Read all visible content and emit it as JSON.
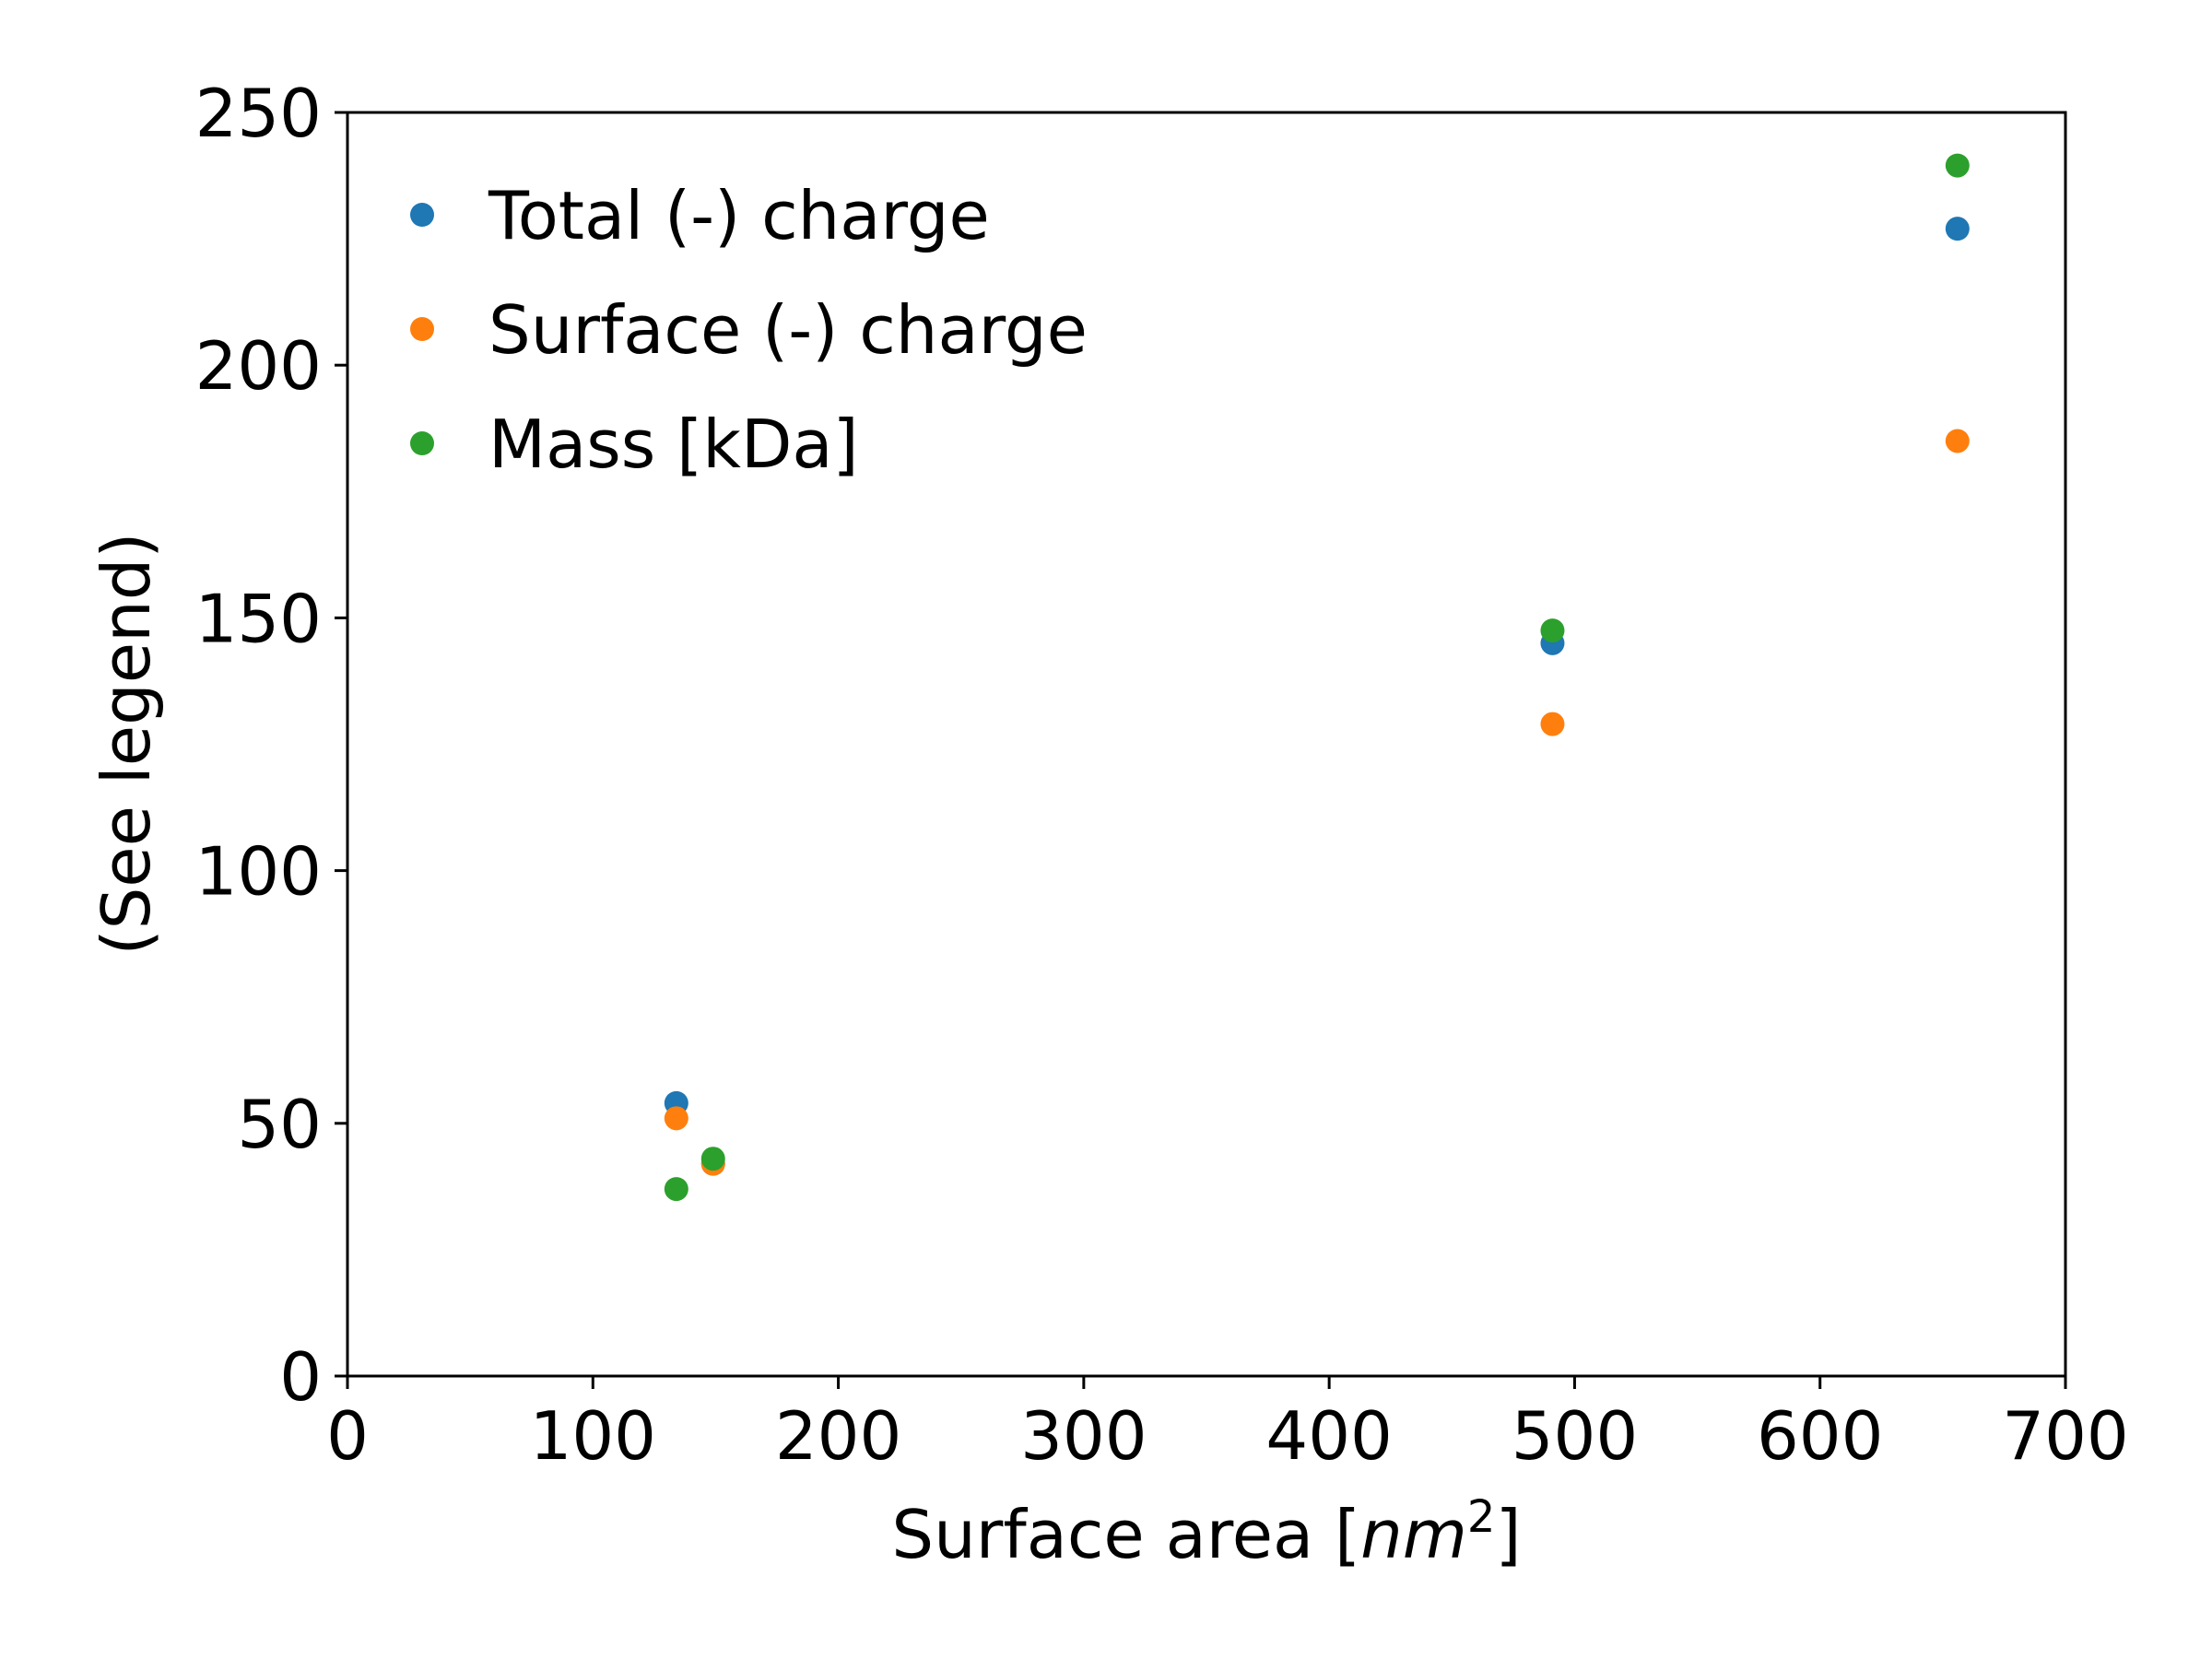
{
  "chart_data": {
    "type": "scatter",
    "title": "",
    "xlabel": "Surface area [",
    "xlabel_math": "nm",
    "xlabel_sup": "2",
    "xlabel_close": "]",
    "ylabel": "(See legend)",
    "xlim": [
      0,
      700
    ],
    "ylim": [
      0,
      250
    ],
    "xticks": [
      0,
      100,
      200,
      300,
      400,
      500,
      600,
      700
    ],
    "yticks": [
      0,
      50,
      100,
      150,
      200,
      250
    ],
    "xtick_labels": [
      "0",
      "100",
      "200",
      "300",
      "400",
      "500",
      "600",
      "700"
    ],
    "ytick_labels": [
      "0",
      "50",
      "100",
      "150",
      "200",
      "250"
    ],
    "grid": false,
    "legend_position": "top-left",
    "series": [
      {
        "name": "Total (-) charge",
        "color": "#1f77b4",
        "points": [
          [
            134,
            54
          ],
          [
            149,
            42
          ],
          [
            491,
            145
          ],
          [
            656,
            227
          ]
        ]
      },
      {
        "name": "Surface (-) charge",
        "color": "#ff7f0e",
        "points": [
          [
            134,
            51
          ],
          [
            149,
            42
          ],
          [
            491,
            129
          ],
          [
            656,
            185
          ]
        ]
      },
      {
        "name": "Mass [kDa]",
        "color": "#2ca02c",
        "points": [
          [
            134,
            37
          ],
          [
            149,
            43
          ],
          [
            491,
            147.5
          ],
          [
            656,
            239.5
          ]
        ]
      }
    ]
  }
}
